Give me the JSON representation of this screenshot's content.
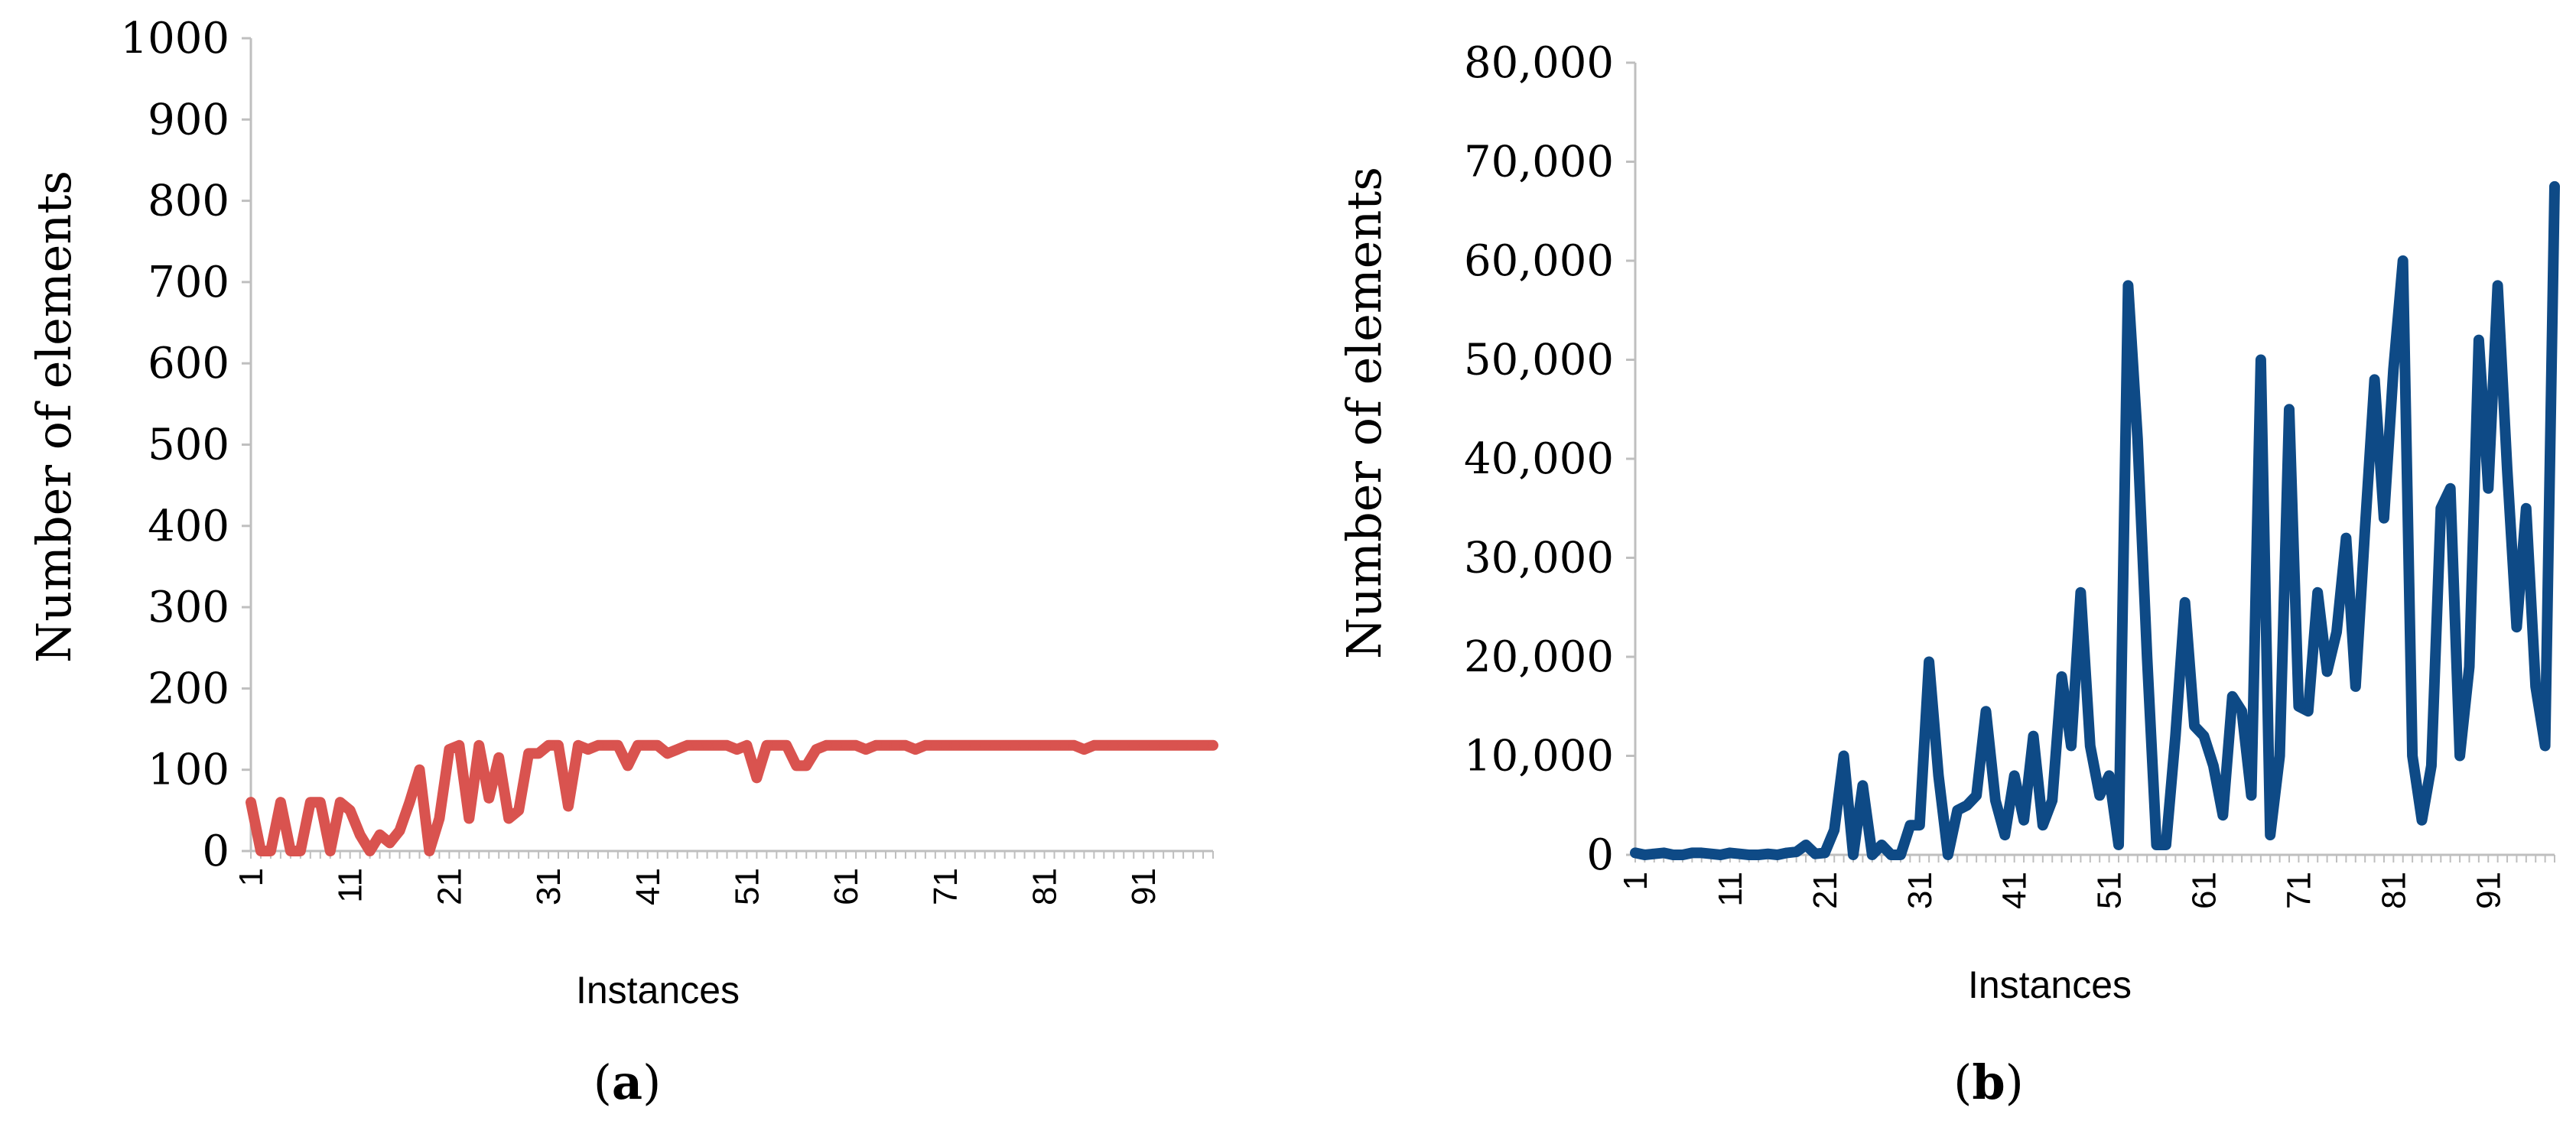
{
  "chart_data": [
    {
      "type": "line",
      "panel": "a",
      "panel_label": {
        "open": "(",
        "letter": "a",
        "close": ")"
      },
      "xlabel": "Instances",
      "ylabel": "Number of elements",
      "x_tick_labels": [
        "1",
        "11",
        "21",
        "31",
        "41",
        "51",
        "61",
        "71",
        "81",
        "91"
      ],
      "y_tick_labels": [
        "0",
        "100",
        "200",
        "300",
        "400",
        "500",
        "600",
        "700",
        "800",
        "900",
        "1000"
      ],
      "ylim": [
        0,
        1000
      ],
      "xlim": [
        1,
        98
      ],
      "grid": false,
      "color": "#d9534f",
      "x": [
        1,
        2,
        3,
        4,
        5,
        6,
        7,
        8,
        9,
        10,
        11,
        12,
        13,
        14,
        15,
        16,
        17,
        18,
        19,
        20,
        21,
        22,
        23,
        24,
        25,
        26,
        27,
        28,
        29,
        30,
        31,
        32,
        33,
        34,
        35,
        36,
        37,
        38,
        39,
        40,
        41,
        42,
        43,
        44,
        45,
        46,
        47,
        48,
        49,
        50,
        51,
        52,
        53,
        54,
        55,
        56,
        57,
        58,
        59,
        60,
        61,
        62,
        63,
        64,
        65,
        66,
        67,
        68,
        69,
        70,
        71,
        72,
        73,
        74,
        75,
        76,
        77,
        78,
        79,
        80,
        81,
        82,
        83,
        84,
        85,
        86,
        87,
        88,
        89,
        90,
        91,
        92,
        93,
        94,
        95,
        96,
        97,
        98
      ],
      "values": [
        60,
        0,
        0,
        60,
        0,
        0,
        60,
        60,
        0,
        60,
        50,
        20,
        0,
        20,
        10,
        25,
        60,
        100,
        0,
        40,
        125,
        130,
        40,
        130,
        65,
        115,
        40,
        50,
        120,
        120,
        130,
        130,
        55,
        130,
        125,
        130,
        130,
        130,
        105,
        130,
        130,
        130,
        120,
        125,
        130,
        130,
        130,
        130,
        130,
        125,
        130,
        90,
        130,
        130,
        130,
        105,
        105,
        125,
        130,
        130,
        130,
        130,
        125,
        130,
        130,
        130,
        130,
        125,
        130,
        130,
        130,
        130,
        130,
        130,
        130,
        130,
        130,
        130,
        130,
        130,
        130,
        130,
        130,
        130,
        125,
        130,
        130,
        130,
        130,
        130,
        130,
        130,
        130,
        130,
        130,
        130,
        130,
        130
      ]
    },
    {
      "type": "line",
      "panel": "b",
      "panel_label": {
        "open": "(",
        "letter": "b",
        "close": ")"
      },
      "xlabel": "Instances",
      "ylabel": "Number of elements",
      "x_tick_labels": [
        "1",
        "11",
        "21",
        "31",
        "41",
        "51",
        "61",
        "71",
        "81",
        "91"
      ],
      "y_tick_labels": [
        "0",
        "10,000",
        "20,000",
        "30,000",
        "40,000",
        "50,000",
        "60,000",
        "70,000",
        "80,000"
      ],
      "ylim": [
        0,
        80000
      ],
      "xlim": [
        1,
        98
      ],
      "grid": false,
      "color": "#0e4a86",
      "x": [
        1,
        2,
        3,
        4,
        5,
        6,
        7,
        8,
        9,
        10,
        11,
        12,
        13,
        14,
        15,
        16,
        17,
        18,
        19,
        20,
        21,
        22,
        23,
        24,
        25,
        26,
        27,
        28,
        29,
        30,
        31,
        32,
        33,
        34,
        35,
        36,
        37,
        38,
        39,
        40,
        41,
        42,
        43,
        44,
        45,
        46,
        47,
        48,
        49,
        50,
        51,
        52,
        53,
        54,
        55,
        56,
        57,
        58,
        59,
        60,
        61,
        62,
        63,
        64,
        65,
        66,
        67,
        68,
        69,
        70,
        71,
        72,
        73,
        74,
        75,
        76,
        77,
        78,
        79,
        80,
        81,
        82,
        83,
        84,
        85,
        86,
        87,
        88,
        89,
        90,
        91,
        92,
        93,
        94,
        95,
        96,
        97,
        98
      ],
      "values": [
        200,
        0,
        100,
        200,
        0,
        0,
        200,
        200,
        100,
        0,
        200,
        100,
        0,
        0,
        100,
        0,
        200,
        300,
        1000,
        100,
        200,
        2500,
        10000,
        0,
        7000,
        0,
        1000,
        0,
        0,
        3000,
        3000,
        19500,
        8000,
        0,
        4500,
        5000,
        6000,
        14500,
        5500,
        2000,
        8000,
        3500,
        12000,
        3000,
        5500,
        18000,
        11000,
        26500,
        11000,
        6000,
        8000,
        1000,
        57500,
        42000,
        20000,
        1000,
        1000,
        12000,
        25500,
        13000,
        12000,
        9000,
        4000,
        16000,
        14500,
        6000,
        50000,
        2000,
        10000,
        45000,
        15000,
        14500,
        26500,
        18500,
        22500,
        32000,
        17000,
        33000,
        48000,
        34000,
        49000,
        60000,
        10000,
        3500,
        9000,
        35000,
        37000,
        10000,
        19000,
        52000,
        37000,
        57500,
        39000,
        23000,
        35000,
        17000,
        11000,
        67500
      ]
    }
  ]
}
